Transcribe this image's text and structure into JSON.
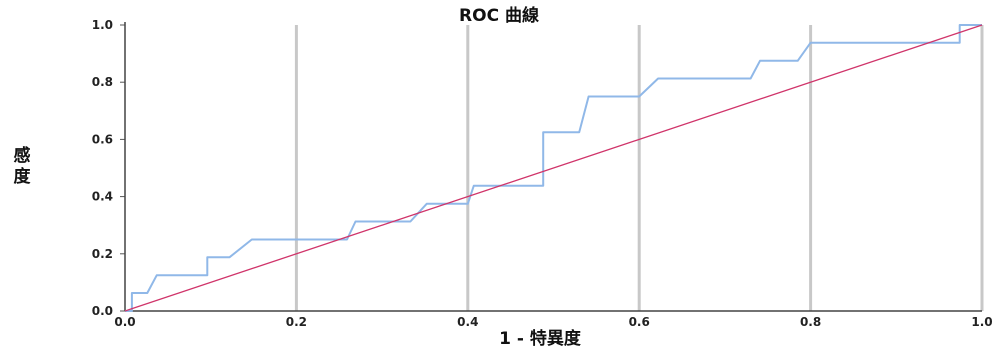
{
  "chart_data": {
    "type": "line",
    "title": "ROC 曲線",
    "xlabel": "1 - 特異度",
    "ylabel": "感度",
    "xlim": [
      0,
      1
    ],
    "ylim": [
      0,
      1
    ],
    "x_ticks": [
      "0.0",
      "0.2",
      "0.4",
      "0.6",
      "0.8",
      "1.0"
    ],
    "y_ticks": [
      "0.0",
      "0.2",
      "0.4",
      "0.6",
      "0.8",
      "1.0"
    ],
    "grid": "vertical",
    "series": [
      {
        "color": "#90b8e8",
        "x": [
          0.0,
          0.008,
          0.008,
          0.026,
          0.037,
          0.096,
          0.096,
          0.122,
          0.148,
          0.259,
          0.269,
          0.333,
          0.352,
          0.4,
          0.407,
          0.488,
          0.488,
          0.53,
          0.541,
          0.6,
          0.622,
          0.73,
          0.741,
          0.785,
          0.8,
          0.974,
          0.974,
          1.0
        ],
        "y": [
          0.0,
          0.0,
          0.063,
          0.063,
          0.125,
          0.125,
          0.188,
          0.188,
          0.25,
          0.25,
          0.313,
          0.313,
          0.375,
          0.375,
          0.438,
          0.438,
          0.625,
          0.625,
          0.75,
          0.75,
          0.813,
          0.813,
          0.875,
          0.875,
          0.938,
          0.938,
          1.0,
          1.0
        ]
      },
      {
        "color": "#d0346a",
        "x": [
          0,
          1
        ],
        "y": [
          0,
          1
        ]
      }
    ]
  }
}
